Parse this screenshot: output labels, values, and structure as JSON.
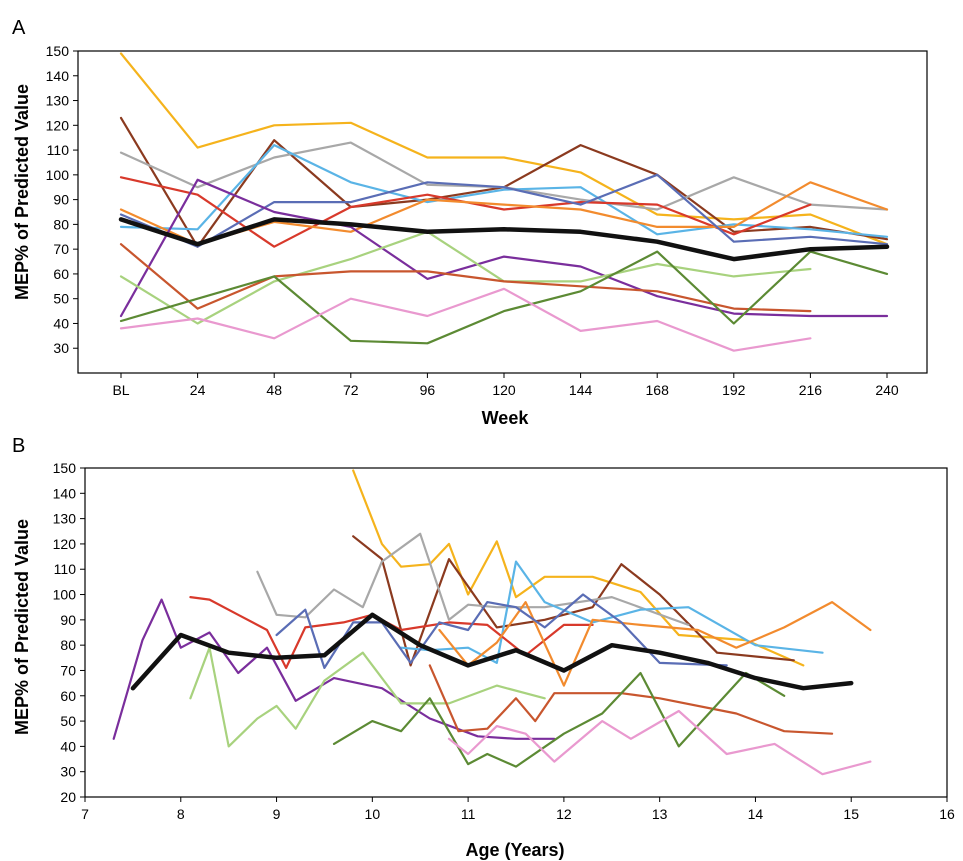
{
  "chart_data": [
    {
      "panel": "A",
      "type": "line",
      "xlabel": "Week",
      "ylabel": "MEP% of Predicted Value",
      "categories": [
        "BL",
        "24",
        "48",
        "72",
        "96",
        "120",
        "144",
        "168",
        "192",
        "216",
        "240"
      ],
      "ylim": [
        20,
        150
      ],
      "yticks": [
        30,
        40,
        50,
        60,
        70,
        80,
        90,
        100,
        110,
        120,
        130,
        140,
        150
      ],
      "grid": false,
      "series": [
        {
          "color": "#f5b31c",
          "values": [
            149,
            111,
            120,
            121,
            107,
            107,
            101,
            84,
            82,
            84,
            72
          ]
        },
        {
          "color": "#8b3a1f",
          "values": [
            123,
            71,
            114,
            87,
            90,
            95,
            112,
            100,
            77,
            79,
            74
          ]
        },
        {
          "color": "#a8a8a8",
          "values": [
            109,
            95,
            107,
            113,
            96,
            95,
            90,
            86,
            99,
            88,
            86
          ]
        },
        {
          "color": "#5ab4e6",
          "values": [
            79,
            78,
            112,
            97,
            89,
            94,
            95,
            76,
            80,
            78,
            75
          ]
        },
        {
          "color": "#d8392b",
          "values": [
            99,
            92,
            71,
            87,
            92,
            86,
            89,
            88,
            76,
            88,
            null
          ]
        },
        {
          "color": "#f28b2e",
          "values": [
            86,
            72,
            81,
            77,
            90,
            88,
            86,
            79,
            79,
            97,
            86
          ]
        },
        {
          "color": "#5a6db5",
          "values": [
            84,
            71,
            89,
            89,
            97,
            95,
            88,
            100,
            73,
            75,
            72
          ]
        },
        {
          "color": "#7a2e9c",
          "values": [
            43,
            98,
            85,
            79,
            58,
            67,
            63,
            51,
            44,
            43,
            43
          ]
        },
        {
          "color": "#a8d27e",
          "values": [
            59,
            40,
            57,
            66,
            77,
            57,
            57,
            64,
            59,
            62,
            null
          ]
        },
        {
          "color": "#c8562e",
          "values": [
            72,
            46,
            59,
            61,
            61,
            57,
            55,
            53,
            46,
            45,
            null
          ]
        },
        {
          "color": "#5c8a34",
          "values": [
            41,
            50,
            59,
            33,
            32,
            45,
            53,
            69,
            40,
            69,
            60
          ]
        },
        {
          "color": "#e999cf",
          "values": [
            38,
            42,
            34,
            50,
            43,
            54,
            37,
            41,
            29,
            34,
            null
          ]
        },
        {
          "color": "#111111",
          "mean": true,
          "values": [
            82,
            72,
            82,
            80,
            77,
            78,
            77,
            73,
            66,
            70,
            71
          ]
        }
      ]
    },
    {
      "panel": "B",
      "type": "line",
      "xlabel": "Age (Years)",
      "ylabel": "MEP% of Predicted Value",
      "xlim": [
        7,
        16
      ],
      "xticks": [
        7,
        8,
        9,
        10,
        11,
        12,
        13,
        14,
        15,
        16
      ],
      "ylim": [
        20,
        150
      ],
      "yticks": [
        20,
        30,
        40,
        50,
        60,
        70,
        80,
        90,
        100,
        110,
        120,
        130,
        140,
        150
      ],
      "grid": false,
      "series": [
        {
          "color": "#f5b31c",
          "x": [
            9.8,
            10.1,
            10.3,
            10.6,
            10.8,
            11.0,
            11.3,
            11.5,
            11.8,
            12.3,
            12.8,
            13.2,
            13.9,
            14.5
          ],
          "y": [
            149,
            120,
            111,
            112,
            120,
            100,
            121,
            99,
            107,
            107,
            101,
            84,
            82,
            72
          ]
        },
        {
          "color": "#8b3a1f",
          "x": [
            9.8,
            10.1,
            10.4,
            10.8,
            11.3,
            11.8,
            12.3,
            12.6,
            13.0,
            13.6,
            14.4
          ],
          "y": [
            123,
            114,
            72,
            114,
            87,
            90,
            95,
            112,
            100,
            77,
            74
          ]
        },
        {
          "color": "#a8a8a8",
          "x": [
            8.8,
            9.0,
            9.3,
            9.6,
            9.9,
            10.1,
            10.5,
            10.8,
            11.0,
            11.3,
            11.8,
            12.5,
            13.3
          ],
          "y": [
            109,
            92,
            91,
            102,
            95,
            113,
            124,
            90,
            96,
            95,
            95,
            99,
            88
          ]
        },
        {
          "color": "#5ab4e6",
          "x": [
            10.3,
            10.6,
            11.0,
            11.3,
            11.5,
            11.8,
            12.3,
            12.8,
            13.3,
            14.0,
            14.7
          ],
          "y": [
            79,
            78,
            79,
            73,
            113,
            97,
            89,
            94,
            95,
            80,
            77
          ]
        },
        {
          "color": "#d8392b",
          "x": [
            8.1,
            8.3,
            8.6,
            8.9,
            9.1,
            9.3,
            9.7,
            10.0,
            10.3,
            10.8,
            11.2,
            11.6,
            12.0,
            12.3
          ],
          "y": [
            99,
            98,
            92,
            86,
            71,
            87,
            89,
            92,
            86,
            89,
            88,
            76,
            88,
            88
          ]
        },
        {
          "color": "#f28b2e",
          "x": [
            10.7,
            11.0,
            11.3,
            11.6,
            12.0,
            12.3,
            12.8,
            13.4,
            13.8,
            14.3,
            14.8,
            15.2
          ],
          "y": [
            86,
            72,
            81,
            97,
            64,
            90,
            88,
            86,
            79,
            87,
            97,
            86
          ]
        },
        {
          "color": "#5a6db5",
          "x": [
            9.0,
            9.3,
            9.5,
            9.8,
            10.1,
            10.4,
            10.7,
            11.0,
            11.2,
            11.5,
            11.8,
            12.2,
            12.6,
            13.0,
            13.7
          ],
          "y": [
            84,
            94,
            71,
            89,
            89,
            73,
            89,
            86,
            97,
            95,
            87,
            100,
            89,
            73,
            72
          ]
        },
        {
          "color": "#7a2e9c",
          "x": [
            7.3,
            7.6,
            7.8,
            8.0,
            8.3,
            8.6,
            8.9,
            9.2,
            9.6,
            10.1,
            10.6,
            11.1,
            11.5,
            11.9
          ],
          "y": [
            43,
            82,
            98,
            79,
            85,
            69,
            79,
            58,
            67,
            63,
            51,
            44,
            43,
            43
          ]
        },
        {
          "color": "#a8d27e",
          "x": [
            8.1,
            8.3,
            8.5,
            8.8,
            9.0,
            9.2,
            9.5,
            9.9,
            10.3,
            10.8,
            11.3,
            11.8
          ],
          "y": [
            59,
            79,
            40,
            51,
            56,
            47,
            66,
            77,
            57,
            57,
            64,
            59
          ]
        },
        {
          "color": "#c8562e",
          "x": [
            10.6,
            10.9,
            11.2,
            11.5,
            11.7,
            11.9,
            12.2,
            12.6,
            13.0,
            13.8,
            14.3,
            14.8
          ],
          "y": [
            72,
            46,
            47,
            59,
            50,
            61,
            61,
            61,
            59,
            53,
            46,
            45
          ]
        },
        {
          "color": "#5c8a34",
          "x": [
            9.6,
            10.0,
            10.3,
            10.6,
            11.0,
            11.2,
            11.5,
            12.0,
            12.4,
            12.8,
            13.2,
            13.9,
            14.3
          ],
          "y": [
            41,
            50,
            46,
            59,
            33,
            37,
            32,
            45,
            53,
            69,
            40,
            69,
            60
          ]
        },
        {
          "color": "#e999cf",
          "x": [
            10.8,
            11.0,
            11.3,
            11.6,
            11.9,
            12.4,
            12.7,
            13.2,
            13.7,
            14.2,
            14.7,
            15.2
          ],
          "y": [
            43,
            37,
            48,
            45,
            34,
            50,
            43,
            54,
            37,
            41,
            29,
            34
          ]
        },
        {
          "color": "#111111",
          "mean": true,
          "x": [
            7.5,
            8.0,
            8.5,
            9.0,
            9.5,
            10.0,
            10.5,
            11.0,
            11.5,
            12.0,
            12.5,
            13.0,
            13.5,
            14.0,
            14.5,
            15.0
          ],
          "y": [
            63,
            84,
            77,
            75,
            76,
            92,
            80,
            72,
            78,
            70,
            80,
            77,
            73,
            67,
            63,
            65
          ]
        }
      ]
    }
  ]
}
